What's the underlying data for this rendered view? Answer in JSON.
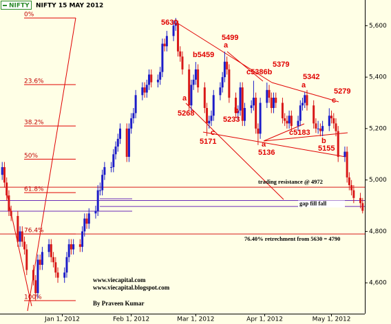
{
  "chart_data": {
    "type": "candlestick",
    "symbol": "NIFTY",
    "title": "NIFTY 15 MAY 2012",
    "x": [
      "2011-12-05",
      "2011-12-06",
      "2011-12-07",
      "2011-12-08",
      "2011-12-09",
      "2011-12-12",
      "2011-12-13",
      "2011-12-14",
      "2011-12-15",
      "2011-12-16",
      "2011-12-19",
      "2011-12-20",
      "2011-12-21",
      "2011-12-22",
      "2011-12-23",
      "2011-12-26",
      "2011-12-27",
      "2011-12-28",
      "2011-12-29",
      "2011-12-30",
      "2012-01-02",
      "2012-01-03",
      "2012-01-04",
      "2012-01-05",
      "2012-01-06",
      "2012-01-09",
      "2012-01-10",
      "2012-01-11",
      "2012-01-12",
      "2012-01-13",
      "2012-01-16",
      "2012-01-17",
      "2012-01-18",
      "2012-01-19",
      "2012-01-20",
      "2012-01-23",
      "2012-01-24",
      "2012-01-25",
      "2012-01-26",
      "2012-01-27",
      "2012-01-30",
      "2012-01-31",
      "2012-02-01",
      "2012-02-02",
      "2012-02-03",
      "2012-02-06",
      "2012-02-07",
      "2012-02-08",
      "2012-02-09",
      "2012-02-10",
      "2012-02-13",
      "2012-02-14",
      "2012-02-15",
      "2012-02-16",
      "2012-02-17",
      "2012-02-20",
      "2012-02-21",
      "2012-02-22",
      "2012-02-23",
      "2012-02-24",
      "2012-02-27",
      "2012-02-28",
      "2012-02-29",
      "2012-03-01",
      "2012-03-02",
      "2012-03-05",
      "2012-03-06",
      "2012-03-07",
      "2012-03-08",
      "2012-03-09",
      "2012-03-12",
      "2012-03-13",
      "2012-03-14",
      "2012-03-15",
      "2012-03-16",
      "2012-03-19",
      "2012-03-20",
      "2012-03-21",
      "2012-03-22",
      "2012-03-23",
      "2012-03-26",
      "2012-03-27",
      "2012-03-28",
      "2012-03-29",
      "2012-03-30",
      "2012-04-02",
      "2012-04-03",
      "2012-04-04",
      "2012-04-05",
      "2012-04-06",
      "2012-04-09",
      "2012-04-10",
      "2012-04-11",
      "2012-04-12",
      "2012-04-13",
      "2012-04-16",
      "2012-04-17",
      "2012-04-18",
      "2012-04-19",
      "2012-04-20",
      "2012-04-23",
      "2012-04-24",
      "2012-04-25",
      "2012-04-26",
      "2012-04-27",
      "2012-04-30",
      "2012-05-01",
      "2012-05-02",
      "2012-05-03",
      "2012-05-04",
      "2012-05-07",
      "2012-05-08",
      "2012-05-09",
      "2012-05-10",
      "2012-05-11",
      "2012-05-14",
      "2012-05-15"
    ],
    "ohlc": [
      [
        5020,
        5070,
        5000,
        5050
      ],
      [
        5050,
        5070,
        4970,
        4990
      ],
      [
        4990,
        5010,
        4920,
        4940
      ],
      [
        4940,
        4960,
        4860,
        4880
      ],
      [
        4880,
        4900,
        4840,
        4860
      ],
      [
        4860,
        4880,
        4740,
        4760
      ],
      [
        4760,
        4820,
        4740,
        4800
      ],
      [
        4800,
        4820,
        4740,
        4760
      ],
      [
        4760,
        4780,
        4710,
        4730
      ],
      [
        4730,
        4750,
        4630,
        4650
      ],
      [
        4650,
        4670,
        4590,
        4610
      ],
      [
        4610,
        4630,
        4531,
        4560
      ],
      [
        4560,
        4710,
        4540,
        4690
      ],
      [
        4690,
        4710,
        4650,
        4670
      ],
      [
        4670,
        4740,
        4650,
        4720
      ],
      [
        4720,
        4770,
        4700,
        4750
      ],
      [
        4750,
        4770,
        4680,
        4700
      ],
      [
        4700,
        4720,
        4660,
        4680
      ],
      [
        4680,
        4700,
        4620,
        4640
      ],
      [
        4640,
        4660,
        4600,
        4620
      ],
      [
        4620,
        4660,
        4600,
        4640
      ],
      [
        4640,
        4720,
        4620,
        4700
      ],
      [
        4700,
        4770,
        4680,
        4750
      ],
      [
        4750,
        4770,
        4710,
        4730
      ],
      [
        4730,
        4770,
        4710,
        4750
      ],
      [
        4750,
        4770,
        4720,
        4740
      ],
      [
        4740,
        4820,
        4720,
        4800
      ],
      [
        4800,
        4870,
        4780,
        4850
      ],
      [
        4850,
        4870,
        4810,
        4830
      ],
      [
        4830,
        4890,
        4810,
        4870
      ],
      [
        4870,
        4900,
        4850,
        4880
      ],
      [
        4880,
        4980,
        4860,
        4960
      ],
      [
        4960,
        4990,
        4940,
        4960
      ],
      [
        4960,
        5040,
        4940,
        5020
      ],
      [
        5020,
        5070,
        5000,
        5050
      ],
      [
        5050,
        5070,
        5030,
        5050
      ],
      [
        5050,
        5120,
        5030,
        5100
      ],
      [
        5100,
        5150,
        5080,
        5130
      ],
      [
        5130,
        5180,
        5110,
        5160
      ],
      [
        5160,
        5220,
        5140,
        5200
      ],
      [
        5200,
        5220,
        5070,
        5090
      ],
      [
        5090,
        5220,
        5070,
        5200
      ],
      [
        5200,
        5260,
        5180,
        5240
      ],
      [
        5240,
        5280,
        5220,
        5260
      ],
      [
        5260,
        5350,
        5240,
        5330
      ],
      [
        5330,
        5380,
        5310,
        5360
      ],
      [
        5360,
        5380,
        5320,
        5340
      ],
      [
        5340,
        5390,
        5320,
        5370
      ],
      [
        5370,
        5430,
        5350,
        5410
      ],
      [
        5410,
        5430,
        5360,
        5380
      ],
      [
        5380,
        5410,
        5360,
        5390
      ],
      [
        5390,
        5440,
        5370,
        5420
      ],
      [
        5420,
        5550,
        5400,
        5530
      ],
      [
        5530,
        5550,
        5500,
        5520
      ],
      [
        5520,
        5580,
        5500,
        5560
      ],
      [
        5560,
        5620,
        5540,
        5600
      ],
      [
        5600,
        5630,
        5580,
        5610
      ],
      [
        5610,
        5620,
        5480,
        5500
      ],
      [
        5500,
        5520,
        5460,
        5480
      ],
      [
        5480,
        5500,
        5410,
        5430
      ],
      [
        5430,
        5450,
        5268,
        5290
      ],
      [
        5290,
        5390,
        5270,
        5370
      ],
      [
        5370,
        5410,
        5350,
        5390
      ],
      [
        5390,
        5459,
        5370,
        5430
      ],
      [
        5430,
        5450,
        5340,
        5360
      ],
      [
        5360,
        5380,
        5260,
        5280
      ],
      [
        5280,
        5300,
        5171,
        5220
      ],
      [
        5220,
        5250,
        5200,
        5230
      ],
      [
        5230,
        5270,
        5210,
        5250
      ],
      [
        5250,
        5350,
        5230,
        5330
      ],
      [
        5330,
        5380,
        5310,
        5360
      ],
      [
        5360,
        5420,
        5340,
        5400
      ],
      [
        5400,
        5499,
        5380,
        5460
      ],
      [
        5460,
        5480,
        5410,
        5430
      ],
      [
        5430,
        5450,
        5300,
        5320
      ],
      [
        5320,
        5340,
        5240,
        5260
      ],
      [
        5260,
        5290,
        5233,
        5270
      ],
      [
        5270,
        5380,
        5250,
        5360
      ],
      [
        5360,
        5380,
        5210,
        5230
      ],
      [
        5230,
        5300,
        5210,
        5280
      ],
      [
        5280,
        5310,
        5260,
        5290
      ],
      [
        5290,
        5386,
        5270,
        5320
      ],
      [
        5320,
        5340,
        5180,
        5200
      ],
      [
        5200,
        5220,
        5136,
        5180
      ],
      [
        5180,
        5320,
        5160,
        5300
      ],
      [
        5300,
        5379,
        5280,
        5350
      ],
      [
        5350,
        5370,
        5300,
        5320
      ],
      [
        5320,
        5340,
        5260,
        5280
      ],
      [
        5280,
        5340,
        5260,
        5320
      ],
      [
        5320,
        5340,
        5280,
        5300
      ],
      [
        5300,
        5320,
        5220,
        5240
      ],
      [
        5240,
        5260,
        5210,
        5230
      ],
      [
        5230,
        5250,
        5200,
        5220
      ],
      [
        5220,
        5270,
        5200,
        5250
      ],
      [
        5250,
        5270,
        5190,
        5210
      ],
      [
        5210,
        5250,
        5190,
        5230
      ],
      [
        5230,
        5310,
        5210,
        5290
      ],
      [
        5290,
        5320,
        5270,
        5300
      ],
      [
        5300,
        5342,
        5280,
        5330
      ],
      [
        5330,
        5350,
        5270,
        5290
      ],
      [
        5290,
        5310,
        5200,
        5220
      ],
      [
        5220,
        5240,
        5183,
        5200
      ],
      [
        5200,
        5230,
        5180,
        5200
      ],
      [
        5200,
        5220,
        5170,
        5190
      ],
      [
        5190,
        5230,
        5170,
        5210
      ],
      [
        5210,
        5279,
        5190,
        5250
      ],
      [
        5250,
        5270,
        5220,
        5240
      ],
      [
        5240,
        5260,
        5200,
        5220
      ],
      [
        5220,
        5240,
        5170,
        5190
      ],
      [
        5190,
        5210,
        5070,
        5090
      ],
      [
        5090,
        5130,
        5070,
        5110
      ],
      [
        5110,
        5130,
        4990,
        5010
      ],
      [
        5010,
        5030,
        4960,
        4980
      ],
      [
        4980,
        5000,
        4940,
        4960
      ],
      [
        4960,
        4980,
        4910,
        4930
      ],
      [
        4930,
        4950,
        4890,
        4910
      ],
      [
        4910,
        4930,
        4870,
        4880
      ]
    ],
    "up_color": "#1c1cc8",
    "down_color": "#d81818",
    "xlim": [
      "2011-12-04",
      "2012-05-16"
    ],
    "xticks": [
      {
        "value": "2012-01-01",
        "label": "Jan 1, 2012"
      },
      {
        "value": "2012-02-01",
        "label": "Feb 1, 2012"
      },
      {
        "value": "2012-03-01",
        "label": "Mar 1, 2012"
      },
      {
        "value": "2012-04-01",
        "label": "Apr 1, 2012"
      },
      {
        "value": "2012-05-01",
        "label": "May 1, 2012"
      }
    ],
    "ylim": [
      4480,
      5700
    ],
    "yticks": [
      {
        "value": 4600,
        "label": "4,600"
      },
      {
        "value": 4800,
        "label": "4,800"
      },
      {
        "value": 5000,
        "label": "5,000"
      },
      {
        "value": 5200,
        "label": "5,200"
      },
      {
        "value": 5400,
        "label": "5,400"
      },
      {
        "value": 5600,
        "label": "5,600"
      }
    ],
    "fib_levels": [
      {
        "label": "0%",
        "value": 5630
      },
      {
        "label": "23.6%",
        "value": 5371
      },
      {
        "label": "38.2%",
        "value": 5210
      },
      {
        "label": "50%",
        "value": 5081
      },
      {
        "label": "61.8%",
        "value": 4951
      },
      {
        "label": "76.4%",
        "value": 4790
      },
      {
        "label": "100%",
        "value": 4531
      }
    ],
    "levels": [
      {
        "label": "trading resistance @ 4972",
        "value": 4972,
        "color": "#d81818"
      },
      {
        "label": "76.40% retrechment from 5630 = 4790",
        "value": 4790,
        "color": "#d81818"
      },
      {
        "label": "gap fill fall",
        "value": 4920,
        "color": "#6a2ab8"
      }
    ],
    "gap_line": {
      "value": 4897,
      "color": "#6a2ab8"
    },
    "annotations": [
      "5630",
      "a",
      "5268",
      "b5459",
      "c",
      "5171",
      "a",
      "5499",
      "b",
      "5233",
      "c5386b",
      "5379",
      "a",
      "5136",
      "a",
      "5342",
      "c5183",
      "b",
      "5155",
      "c",
      "5279"
    ],
    "notes": [
      "www.viecapital.com",
      "www.viecapital.blogspot.com",
      "By Praveen Kumar"
    ]
  }
}
